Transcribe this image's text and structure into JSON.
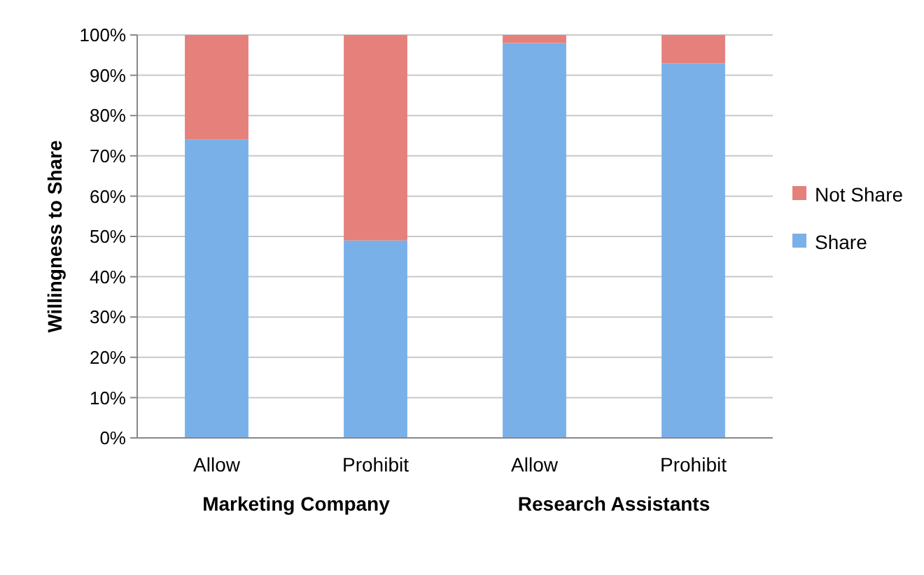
{
  "chart_data": {
    "type": "bar",
    "ylabel": "Willingness to Share",
    "categories": [
      "Allow",
      "Prohibit",
      "Allow",
      "Prohibit"
    ],
    "stacked": true,
    "ylim": [
      0,
      100
    ],
    "yticks": [
      {
        "value": 0,
        "label": "0%"
      },
      {
        "value": 10,
        "label": "10%"
      },
      {
        "value": 20,
        "label": "20%"
      },
      {
        "value": 30,
        "label": "30%"
      },
      {
        "value": 40,
        "label": "40%"
      },
      {
        "value": 50,
        "label": "50%"
      },
      {
        "value": 60,
        "label": "60%"
      },
      {
        "value": 70,
        "label": "70%"
      },
      {
        "value": 80,
        "label": "80%"
      },
      {
        "value": 90,
        "label": "90%"
      },
      {
        "value": 100,
        "label": "100%"
      }
    ],
    "grid": "y",
    "legend": "right",
    "series": [
      {
        "name": "Share",
        "color": "#7ab0e8",
        "values": [
          74,
          49,
          98,
          93
        ]
      },
      {
        "name": "Not Share",
        "color": "#e6807b",
        "values": [
          26,
          51,
          2,
          7
        ]
      }
    ],
    "annotations": [
      "Marketing Company",
      "Research Assistants"
    ]
  }
}
